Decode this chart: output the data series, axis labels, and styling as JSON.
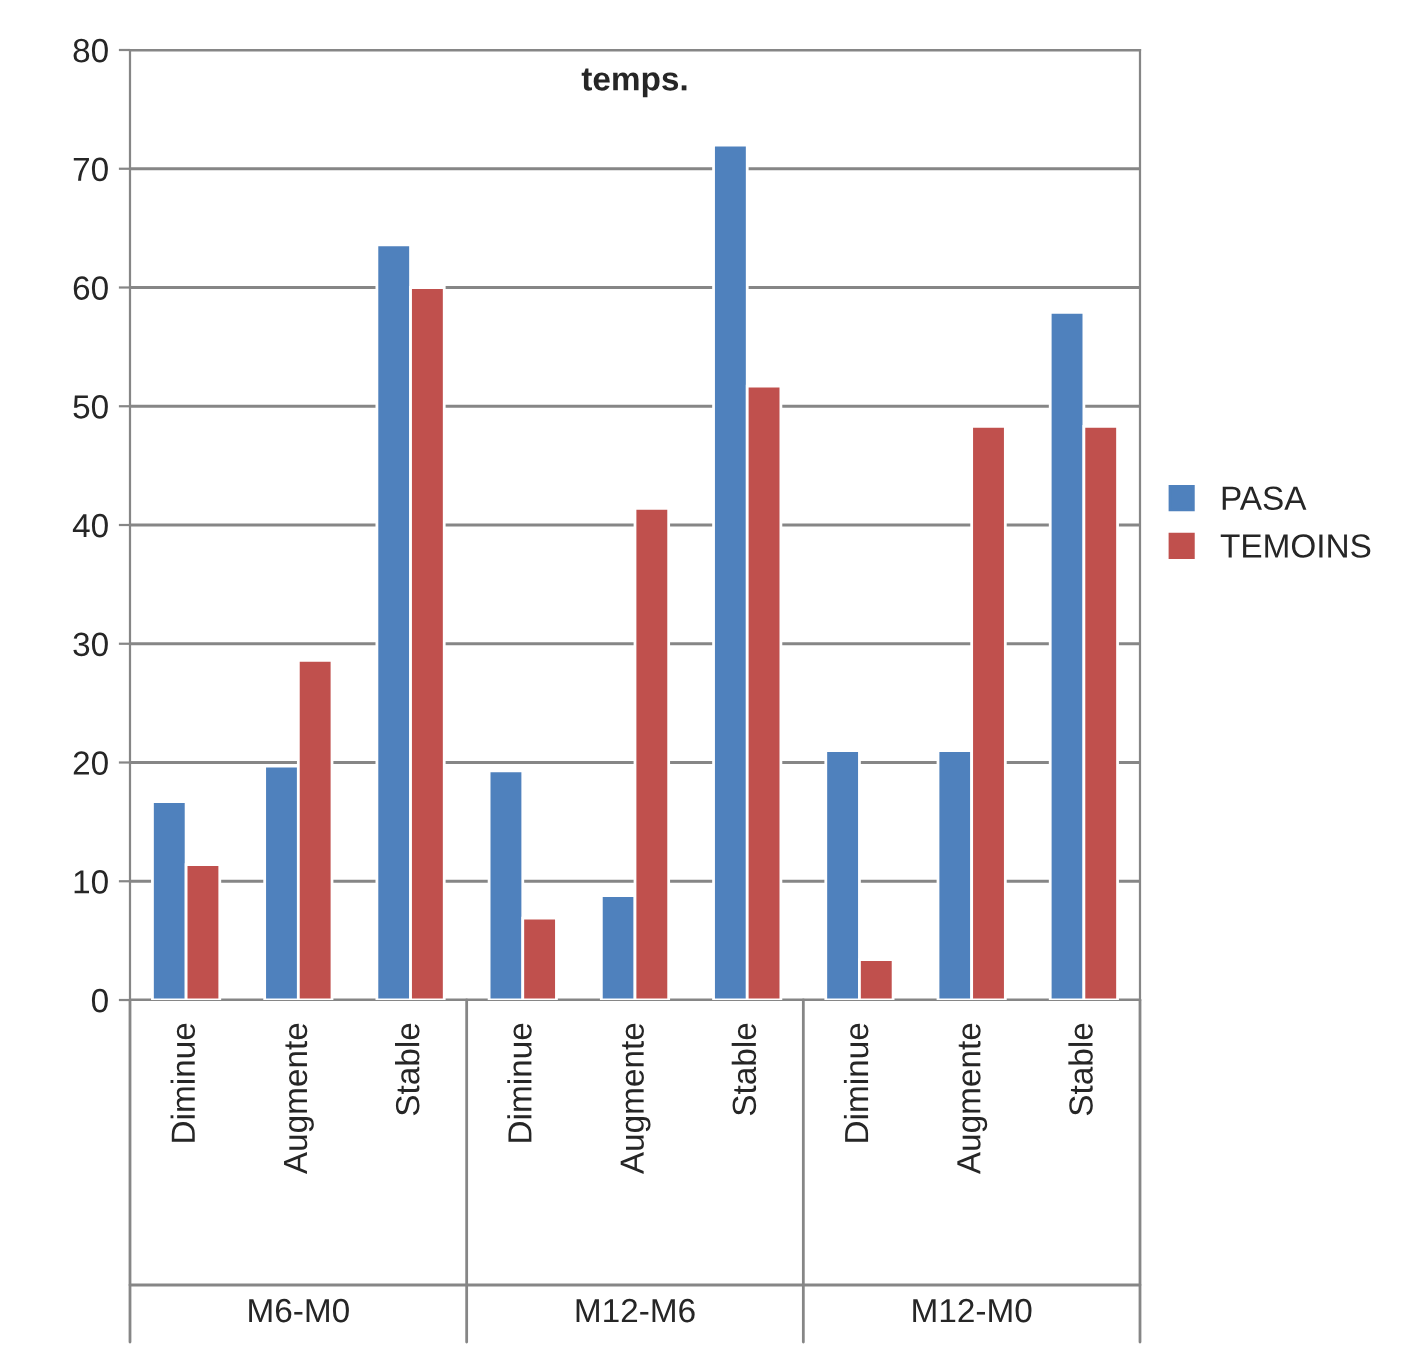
{
  "chart_data": {
    "type": "bar",
    "title": "temps.",
    "categories": [
      "Diminue",
      "Augmente",
      "Stable",
      "Diminue",
      "Augmente",
      "Stable",
      "Diminue",
      "Augmente",
      "Stable"
    ],
    "series": [
      {
        "name": "PASA",
        "color": "#4f81bd",
        "values": [
          16.7,
          19.7,
          63.6,
          19.3,
          8.8,
          72,
          21,
          21,
          57.9
        ]
      },
      {
        "name": "TEMOINS",
        "color": "#c0504d",
        "values": [
          11.4,
          28.6,
          60,
          6.9,
          41.4,
          51.7,
          3.4,
          48.3,
          48.3
        ]
      }
    ],
    "annotations": [
      "M6-M0",
      "M12-M6",
      "M12-M0"
    ],
    "ylim": [
      0,
      80
    ],
    "yticks": [
      0,
      10,
      20,
      30,
      40,
      50,
      60,
      70,
      80
    ],
    "grid": "y",
    "legend": "right"
  }
}
